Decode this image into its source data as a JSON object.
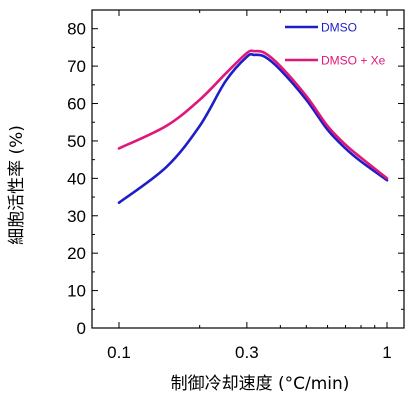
{
  "chart_data": {
    "type": "line",
    "title": "",
    "xlabel": "制御冷却速度 (°C/min)",
    "ylabel": "細胞活性率 (%)",
    "x_scale": "log",
    "xlim": [
      0.1,
      1
    ],
    "ylim": [
      0,
      85
    ],
    "x_ticks": [
      {
        "value": 0.1,
        "label": "0.1"
      },
      {
        "value": 0.3,
        "label": "0.3"
      },
      {
        "value": 1,
        "label": "1"
      }
    ],
    "y_ticks": [
      {
        "value": 0,
        "label": "0"
      },
      {
        "value": 10,
        "label": "10"
      },
      {
        "value": 20,
        "label": "20"
      },
      {
        "value": 30,
        "label": "30"
      },
      {
        "value": 40,
        "label": "40"
      },
      {
        "value": 50,
        "label": "50"
      },
      {
        "value": 60,
        "label": "60"
      },
      {
        "value": 70,
        "label": "70"
      },
      {
        "value": 80,
        "label": "80"
      }
    ],
    "grid": false,
    "legend_position": "top-right",
    "series": [
      {
        "name": "DMSO",
        "color": "#1e1ec8",
        "x": [
          0.1,
          0.15,
          0.2,
          0.25,
          0.3,
          0.32,
          0.35,
          0.4,
          0.5,
          0.6,
          0.7,
          0.8,
          1.0
        ],
        "y": [
          33.5,
          43,
          54,
          66,
          72.5,
          73,
          72.5,
          69,
          61,
          53,
          48,
          44.5,
          39.5
        ]
      },
      {
        "name": "DMSO + Xe",
        "color": "#e0177a",
        "x": [
          0.1,
          0.15,
          0.2,
          0.25,
          0.3,
          0.32,
          0.35,
          0.4,
          0.5,
          0.6,
          0.7,
          0.8,
          1.0
        ],
        "y": [
          48,
          54,
          61,
          68,
          73.5,
          74,
          73.5,
          70,
          62,
          54,
          49,
          45.5,
          40
        ]
      }
    ]
  }
}
